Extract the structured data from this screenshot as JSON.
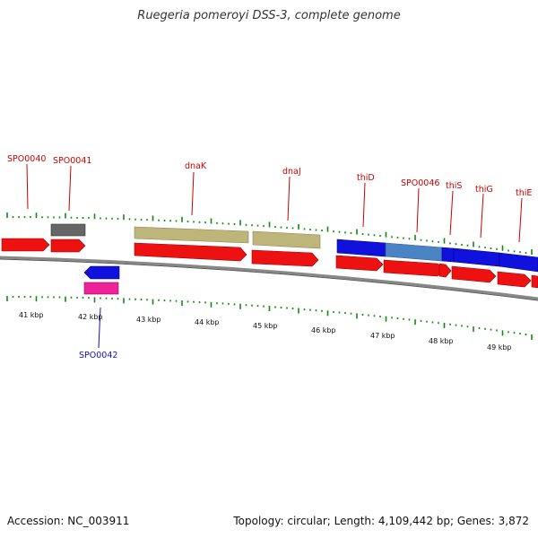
{
  "title": "Ruegeria pomeroyi DSS-3, complete genome",
  "footer": {
    "accession": "Accession: NC_003911",
    "summary": "Topology: circular; Length: 4,109,442 bp; Genes: 3,872"
  },
  "colors": {
    "cds_red": "#ee1111",
    "cds_blue": "#1111dd",
    "cds_steel": "#4a84c4",
    "cds_gray": "#666666",
    "cds_pink": "#ee2299",
    "cds_khaki": "#bdb57a",
    "label_red": "#cc0000",
    "label_blue": "#1111bb",
    "tick_green": "#118811",
    "backbone": "#888888"
  },
  "ticks": [
    "41 kbp",
    "42 kbp",
    "43 kbp",
    "44 kbp",
    "45 kbp",
    "46 kbp",
    "47 kbp",
    "48 kbp",
    "49 kbp"
  ],
  "genes": [
    {
      "name": "SPO0040",
      "color": "red"
    },
    {
      "name": "SPO0041",
      "color": "red"
    },
    {
      "name": "dnaK",
      "color": "red"
    },
    {
      "name": "dnaJ",
      "color": "red"
    },
    {
      "name": "thiD",
      "color": "red"
    },
    {
      "name": "SPO0046",
      "color": "red"
    },
    {
      "name": "thiS",
      "color": "red"
    },
    {
      "name": "thiG",
      "color": "red"
    },
    {
      "name": "thiE",
      "color": "red"
    },
    {
      "name": "SPO0042",
      "color": "blue"
    }
  ]
}
